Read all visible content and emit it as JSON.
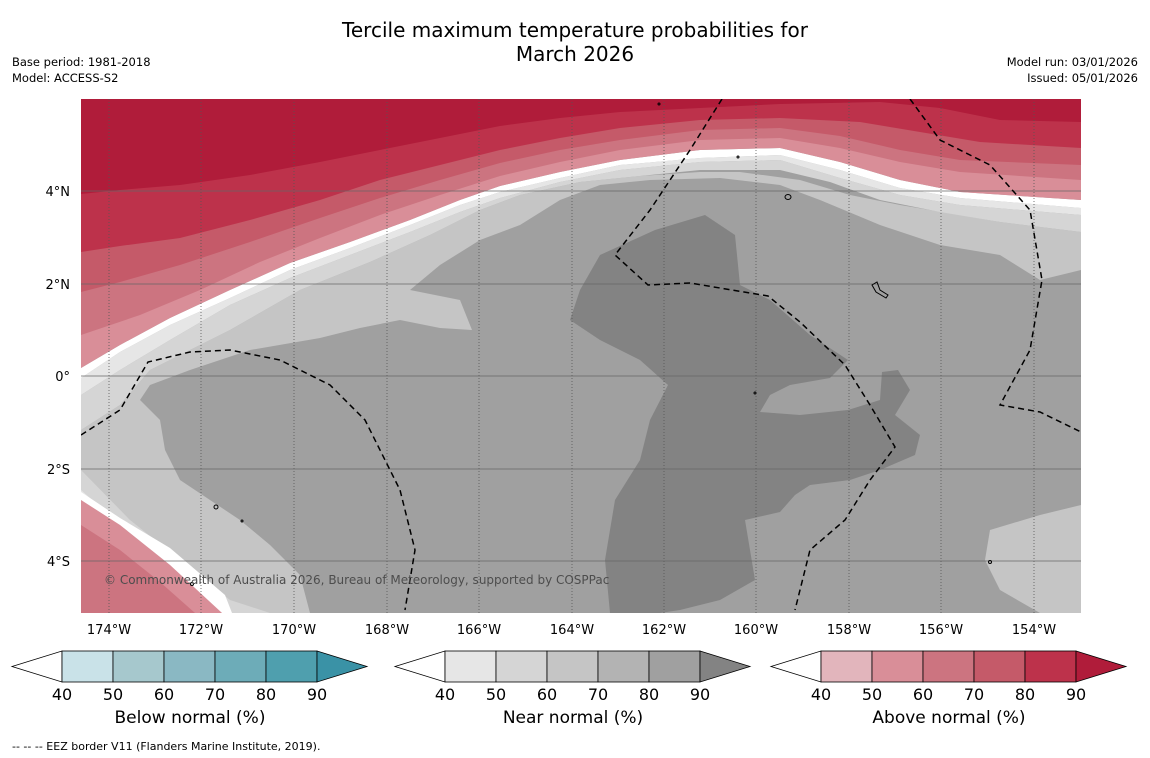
{
  "title_line1": "Tercile maximum temperature probabilities for",
  "title_line2": "March 2026",
  "base_period": "Base period: 1981-2018",
  "model": "Model: ACCESS-S2",
  "model_run": "Model run: 03/01/2026",
  "issued": "Issued: 05/01/2026",
  "copyright": "© Commonwealth of Australia 2026, Bureau of Meteorology, supported by COSPPac",
  "footer": "--  --  -- EEZ border V11 (Flanders Marine Institute, 2019).",
  "map": {
    "x_ticks": [
      "174°W",
      "172°W",
      "170°W",
      "168°W",
      "166°W",
      "164°W",
      "162°W",
      "160°W",
      "158°W",
      "156°W",
      "154°W"
    ],
    "y_ticks": [
      "4°N",
      "2°N",
      "0°",
      "2°S",
      "4°S"
    ]
  },
  "colorbars": [
    {
      "label": "Below normal (%)",
      "ticks": [
        "40",
        "50",
        "60",
        "70",
        "80",
        "90"
      ],
      "colors": [
        "#ffffff",
        "#c9e2e8",
        "#a6c8cd",
        "#8ab8c3",
        "#6dacb8",
        "#4f9fae",
        "#3a92a6"
      ]
    },
    {
      "label": "Near normal (%)",
      "ticks": [
        "40",
        "50",
        "60",
        "70",
        "80",
        "90"
      ],
      "colors": [
        "#ffffff",
        "#e6e6e6",
        "#d5d5d5",
        "#c5c5c5",
        "#b3b3b3",
        "#a0a0a0",
        "#838383"
      ]
    },
    {
      "label": "Above normal (%)",
      "ticks": [
        "40",
        "50",
        "60",
        "70",
        "80",
        "90"
      ],
      "colors": [
        "#ffffff",
        "#e2b5bc",
        "#d98e98",
        "#cc7480",
        "#c55a69",
        "#bd324b",
        "#b01c3a"
      ]
    }
  ],
  "colors": {
    "above_90": "#b01c3a",
    "above_80": "#bd324b",
    "above_70": "#c55a69",
    "above_60": "#cc7480",
    "above_50": "#d98e98",
    "near_40": "#e6e6e6",
    "near_50": "#d5d5d5",
    "near_60": "#c5c5c5",
    "near_70": "#b3b3b3",
    "near_80": "#a0a0a0",
    "near_90": "#838383"
  }
}
